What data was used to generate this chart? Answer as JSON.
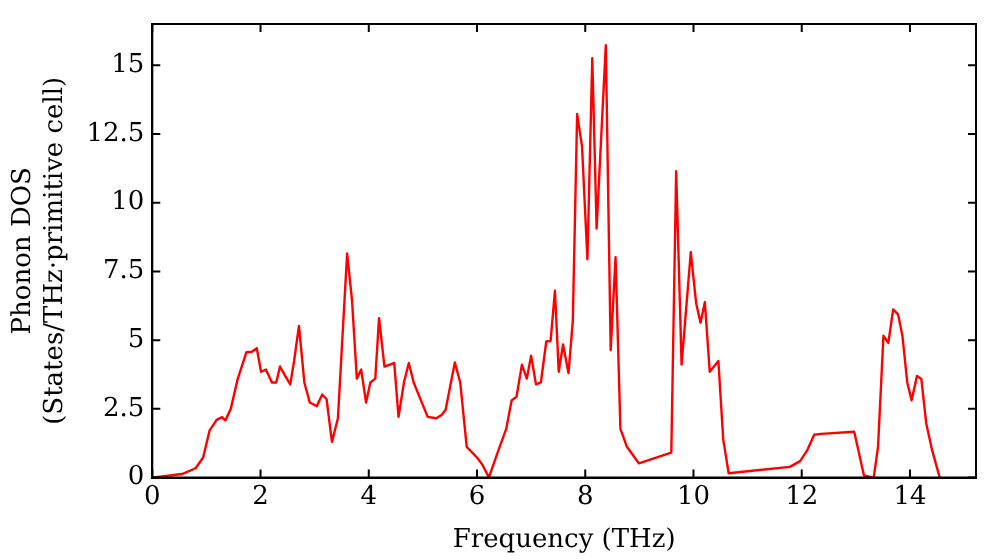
{
  "chart_data": {
    "type": "line",
    "xlabel": "Frequency (THz)",
    "ylabel": "Phonon DOS\n(States/THz·primitive cell)",
    "xlim": [
      0,
      15.22
    ],
    "ylim": [
      0,
      16.5
    ],
    "xticks": [
      0,
      2,
      4,
      6,
      8,
      10,
      12,
      14
    ],
    "yticks": [
      0,
      2.5,
      5,
      7.5,
      10,
      12.5,
      15
    ],
    "grid": false,
    "legend": false,
    "marker": "none",
    "line_style": "solid",
    "series": [
      {
        "color": "#ff0000",
        "x": [
          0,
          0.55,
          0.8,
          0.94,
          1.06,
          1.19,
          1.29,
          1.35,
          1.45,
          1.58,
          1.74,
          1.84,
          1.93,
          2.01,
          2.1,
          2.21,
          2.29,
          2.36,
          2.45,
          2.55,
          2.62,
          2.71,
          2.81,
          2.91,
          3.04,
          3.14,
          3.22,
          3.32,
          3.43,
          3.6,
          3.69,
          3.78,
          3.86,
          3.95,
          4.03,
          4.12,
          4.19,
          4.29,
          4.39,
          4.47,
          4.55,
          4.65,
          4.74,
          4.83,
          4.99,
          5.09,
          5.25,
          5.35,
          5.42,
          5.59,
          5.69,
          5.81,
          6.0,
          6.1,
          6.22,
          6.38,
          6.54,
          6.64,
          6.73,
          6.83,
          6.92,
          7.0,
          7.09,
          7.18,
          7.28,
          7.36,
          7.44,
          7.51,
          7.59,
          7.69,
          7.77,
          7.85,
          7.94,
          8.04,
          8.13,
          8.21,
          8.38,
          8.47,
          8.56,
          8.65,
          8.77,
          8.99,
          9.59,
          9.68,
          9.78,
          9.95,
          10.05,
          10.13,
          10.21,
          10.3,
          10.46,
          10.55,
          10.65,
          11.78,
          11.97,
          12.1,
          12.23,
          12.36,
          12.97,
          13.15,
          13.33,
          13.41,
          13.51,
          13.6,
          13.69,
          13.78,
          13.86,
          13.95,
          14.03,
          14.13,
          14.21,
          14.3,
          14.41,
          14.55
        ],
        "values": [
          0,
          0.13,
          0.34,
          0.73,
          1.72,
          2.1,
          2.2,
          2.08,
          2.5,
          3.6,
          4.56,
          4.58,
          4.71,
          3.85,
          3.93,
          3.46,
          3.46,
          4.04,
          3.72,
          3.39,
          4.24,
          5.52,
          3.46,
          2.73,
          2.6,
          3.02,
          2.86,
          1.3,
          2.16,
          8.15,
          6.46,
          3.6,
          3.93,
          2.73,
          3.46,
          3.6,
          5.8,
          4.04,
          4.11,
          4.17,
          2.21,
          3.46,
          4.17,
          3.46,
          2.68,
          2.21,
          2.16,
          2.29,
          2.47,
          4.19,
          3.46,
          1.12,
          0.73,
          0.47,
          0,
          0.91,
          1.77,
          2.81,
          2.94,
          4.11,
          3.6,
          4.43,
          3.39,
          3.46,
          4.95,
          4.97,
          6.8,
          3.85,
          4.84,
          3.8,
          5.68,
          13.23,
          12.06,
          7.94,
          15.26,
          9.06,
          15.73,
          4.64,
          8.02,
          1.77,
          1.12,
          0.52,
          0.91,
          11.15,
          4.11,
          8.2,
          6.33,
          5.63,
          6.38,
          3.85,
          4.24,
          1.38,
          0.16,
          0.39,
          0.6,
          0.99,
          1.56,
          1.59,
          1.67,
          0.08,
          0,
          1.12,
          5.16,
          4.9,
          6.12,
          5.94,
          5.16,
          3.46,
          2.81,
          3.7,
          3.59,
          1.98,
          0.99,
          0
        ]
      }
    ]
  }
}
